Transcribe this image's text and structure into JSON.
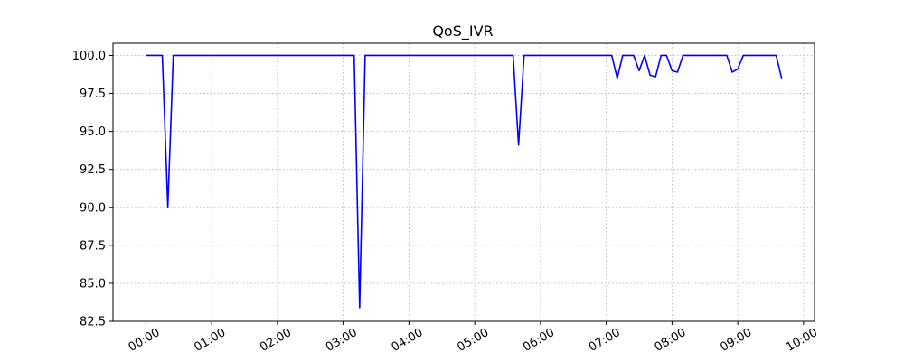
{
  "chart_data": {
    "type": "line",
    "title": "QoS_IVR",
    "xlabel": "",
    "ylabel": "",
    "xlim": [
      "-0:30",
      "10:10"
    ],
    "ylim": [
      82.5,
      100.8
    ],
    "yticks": [
      82.5,
      85.0,
      87.5,
      90.0,
      92.5,
      95.0,
      97.5,
      100.0
    ],
    "xticks": [
      "00:00",
      "01:00",
      "02:00",
      "03:00",
      "04:00",
      "05:00",
      "06:00",
      "07:00",
      "08:00",
      "09:00",
      "10:00"
    ],
    "grid": true,
    "series": [
      {
        "color": "#0000ff",
        "x": [
          "00:00",
          "00:15",
          "00:20",
          "00:25",
          "03:10",
          "03:15",
          "03:20",
          "05:35",
          "05:40",
          "05:45",
          "07:05",
          "07:10",
          "07:15",
          "07:25",
          "07:30",
          "07:35",
          "07:40",
          "07:45",
          "07:50",
          "07:55",
          "08:00",
          "08:05",
          "08:10",
          "08:15",
          "08:50",
          "08:55",
          "09:00",
          "09:05",
          "09:35",
          "09:40"
        ],
        "y": [
          100.0,
          100.0,
          90.0,
          100.0,
          100.0,
          83.4,
          100.0,
          100.0,
          94.1,
          100.0,
          100.0,
          98.5,
          100.0,
          100.0,
          99.0,
          100.0,
          98.7,
          98.6,
          100.0,
          100.0,
          99.0,
          98.9,
          100.0,
          100.0,
          100.0,
          98.9,
          99.1,
          100.0,
          100.0,
          98.5
        ]
      }
    ]
  }
}
